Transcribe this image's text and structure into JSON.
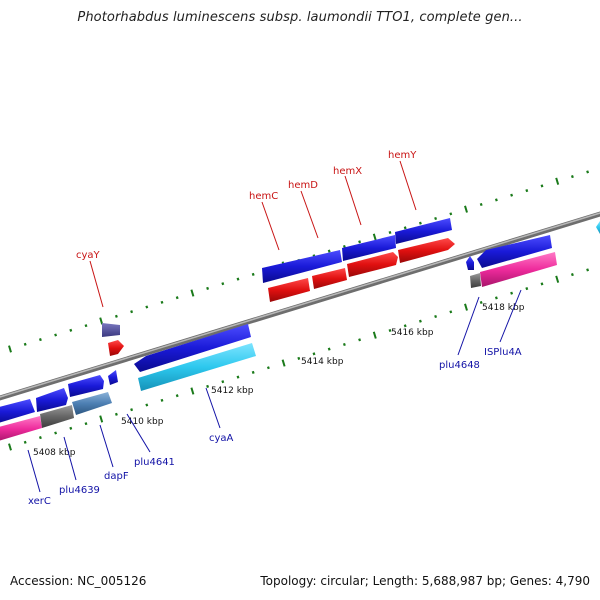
{
  "title": "Photorhabdus luminescens subsp. laumondii TTO1, complete gen...",
  "accession": "Accession: NC_005126",
  "summary": "Topology: circular; Length: 5,688,987 bp; Genes: 4,790",
  "scale_labels": [
    "5408 kbp",
    "5410 kbp",
    "5412 kbp",
    "5414 kbp",
    "5416 kbp",
    "5418 kbp"
  ],
  "genes_forward": [
    "cyaY",
    "hemC",
    "hemD",
    "hemX",
    "hemY"
  ],
  "genes_reverse": [
    "xerC",
    "plu4639",
    "dapF",
    "plu4641",
    "cyaA",
    "plu4648",
    "ISPlu4A"
  ],
  "colors": {
    "cds": "#1a1ad8",
    "cds_forward": "#e01010",
    "rna": "#2dc8ee",
    "pseudo": "#ee2b9c",
    "hypothetical": "#666666",
    "other": "#4d7fb3",
    "backbone": "#8c8c8c",
    "tick": "#1a7a1a",
    "label_forward": "#c81414",
    "label_reverse": "#1212a6"
  }
}
